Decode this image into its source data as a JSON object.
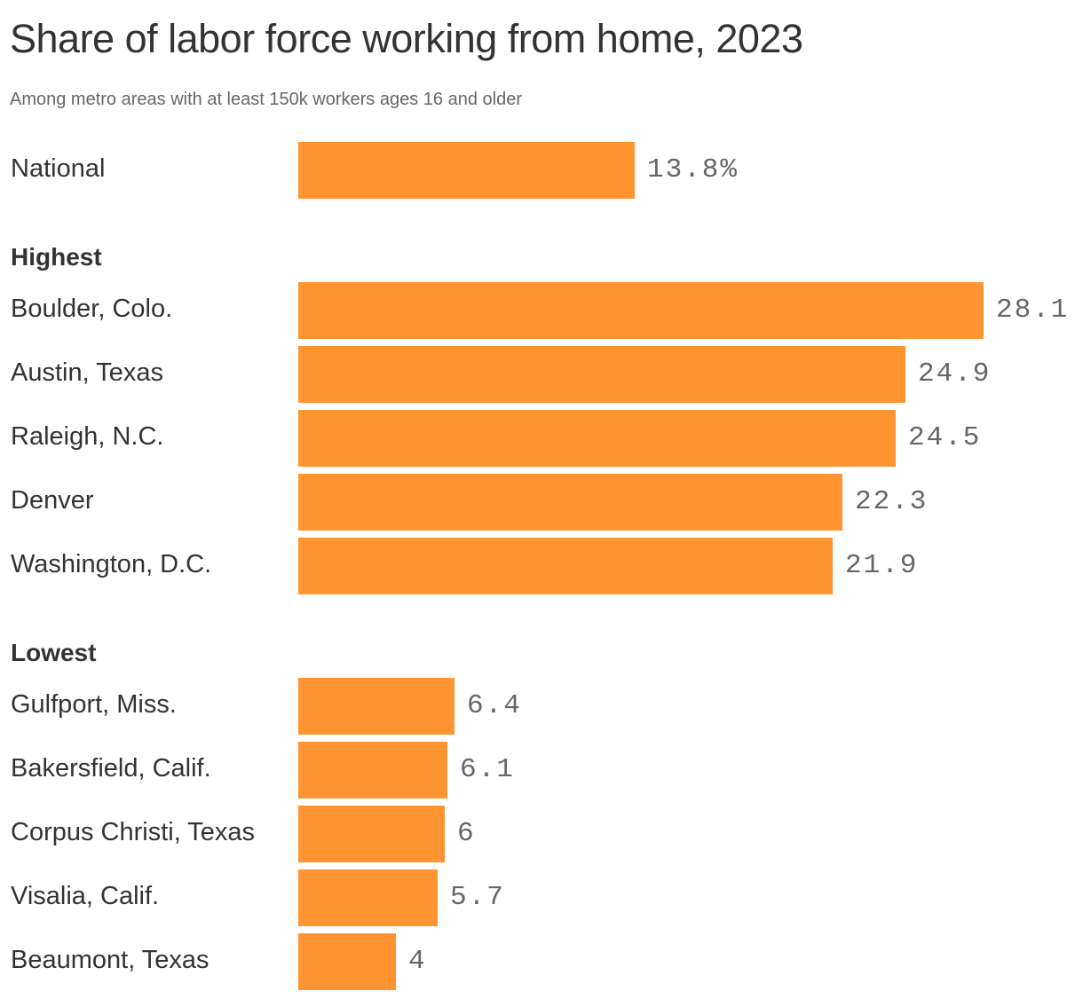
{
  "header": {
    "title": "Share of labor force working from home, 2023",
    "subtitle": "Among metro areas with at least 150k workers ages 16 and older"
  },
  "sections": {
    "highest_label": "Highest",
    "lowest_label": "Lowest"
  },
  "colors": {
    "bar": "#ff9430",
    "value_text": "#666666",
    "label_text": "#333333"
  },
  "rows": [
    {
      "label": "National",
      "value": 13.8,
      "display": "13.8%"
    },
    {
      "label": "Boulder, Colo.",
      "value": 28.1,
      "display": "28.1"
    },
    {
      "label": "Austin, Texas",
      "value": 24.9,
      "display": "24.9"
    },
    {
      "label": "Raleigh, N.C.",
      "value": 24.5,
      "display": "24.5"
    },
    {
      "label": "Denver",
      "value": 22.3,
      "display": "22.3"
    },
    {
      "label": "Washington, D.C.",
      "value": 21.9,
      "display": "21.9"
    },
    {
      "label": "Gulfport, Miss.",
      "value": 6.4,
      "display": "6.4"
    },
    {
      "label": "Bakersfield, Calif.",
      "value": 6.1,
      "display": "6.1"
    },
    {
      "label": "Corpus Christi, Texas",
      "value": 6,
      "display": "6"
    },
    {
      "label": "Visalia, Calif.",
      "value": 5.7,
      "display": "5.7"
    },
    {
      "label": "Beaumont, Texas",
      "value": 4,
      "display": "4"
    }
  ],
  "chart_data": {
    "type": "bar",
    "orientation": "horizontal",
    "title": "Share of labor force working from home, 2023",
    "subtitle": "Among metro areas with at least 150k workers ages 16 and older",
    "xlabel": "",
    "ylabel": "",
    "unit": "%",
    "groups": [
      {
        "name": "",
        "categories": [
          "National"
        ],
        "values": [
          13.8
        ]
      },
      {
        "name": "Highest",
        "categories": [
          "Boulder, Colo.",
          "Austin, Texas",
          "Raleigh, N.C.",
          "Denver",
          "Washington, D.C."
        ],
        "values": [
          28.1,
          24.9,
          24.5,
          22.3,
          21.9
        ]
      },
      {
        "name": "Lowest",
        "categories": [
          "Gulfport, Miss.",
          "Bakersfield, Calif.",
          "Corpus Christi, Texas",
          "Visalia, Calif.",
          "Beaumont, Texas"
        ],
        "values": [
          6.4,
          6.1,
          6,
          5.7,
          4
        ]
      }
    ],
    "categories": [
      "National",
      "Boulder, Colo.",
      "Austin, Texas",
      "Raleigh, N.C.",
      "Denver",
      "Washington, D.C.",
      "Gulfport, Miss.",
      "Bakersfield, Calif.",
      "Corpus Christi, Texas",
      "Visalia, Calif.",
      "Beaumont, Texas"
    ],
    "values": [
      13.8,
      28.1,
      24.9,
      24.5,
      22.3,
      21.9,
      6.4,
      6.1,
      6,
      5.7,
      4
    ],
    "xlim": [
      0,
      28.1
    ],
    "grid": false,
    "legend": "none",
    "data_labels": true
  }
}
